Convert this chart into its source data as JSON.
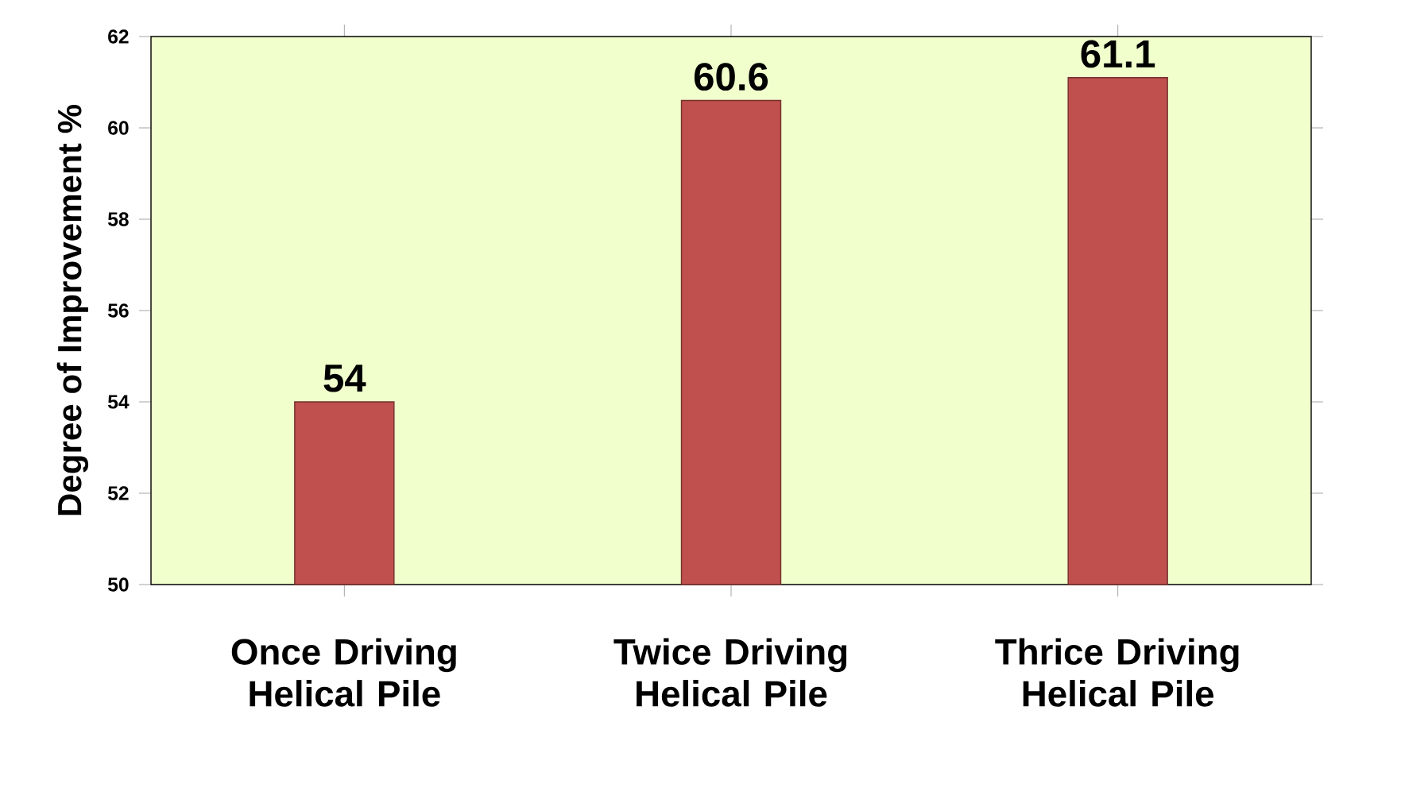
{
  "chart_data": {
    "type": "bar",
    "ylabel": "Degree of Improvement %",
    "categories": [
      "Once Driving Helical Pile",
      "Twice Driving Helical Pile",
      "Thrice Driving Helical Pile"
    ],
    "values": [
      54,
      60.6,
      61.1
    ],
    "color": "#c0504d",
    "ylim": [
      50,
      62
    ],
    "yticks": [
      50,
      52,
      54,
      56,
      58,
      60,
      62
    ],
    "data_labels": true,
    "grid": false
  }
}
